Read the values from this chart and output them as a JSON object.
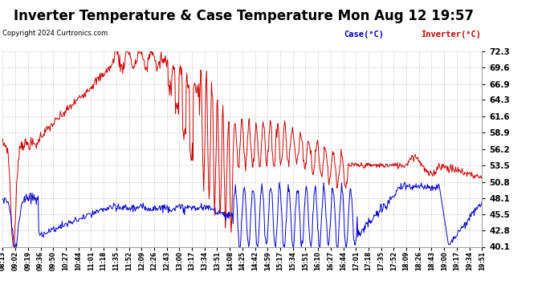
{
  "title": "Inverter Temperature & Case Temperature Mon Aug 12 19:57",
  "copyright": "Copyright 2024 Curtronics.com",
  "legend_case": "Case(°C)",
  "legend_inverter": "Inverter(°C)",
  "case_color": "#0000cc",
  "inverter_color": "#cc0000",
  "background_color": "#ffffff",
  "plot_bg_color": "#ffffff",
  "grid_color": "#aaaaaa",
  "title_fontsize": 12,
  "yticks": [
    40.1,
    42.8,
    45.5,
    48.1,
    50.8,
    53.5,
    56.2,
    58.9,
    61.6,
    64.3,
    66.9,
    69.6,
    72.3
  ],
  "ymin": 40.1,
  "ymax": 72.3,
  "xtick_labels": [
    "08:13",
    "09:02",
    "09:19",
    "09:36",
    "09:50",
    "10:27",
    "10:44",
    "11:01",
    "11:18",
    "11:35",
    "11:52",
    "12:09",
    "12:26",
    "12:43",
    "13:00",
    "13:17",
    "13:34",
    "13:51",
    "14:08",
    "14:25",
    "14:42",
    "14:59",
    "15:17",
    "15:34",
    "15:51",
    "16:10",
    "16:27",
    "16:44",
    "17:01",
    "17:18",
    "17:35",
    "17:52",
    "18:09",
    "18:26",
    "18:43",
    "19:00",
    "19:17",
    "19:34",
    "19:51"
  ]
}
